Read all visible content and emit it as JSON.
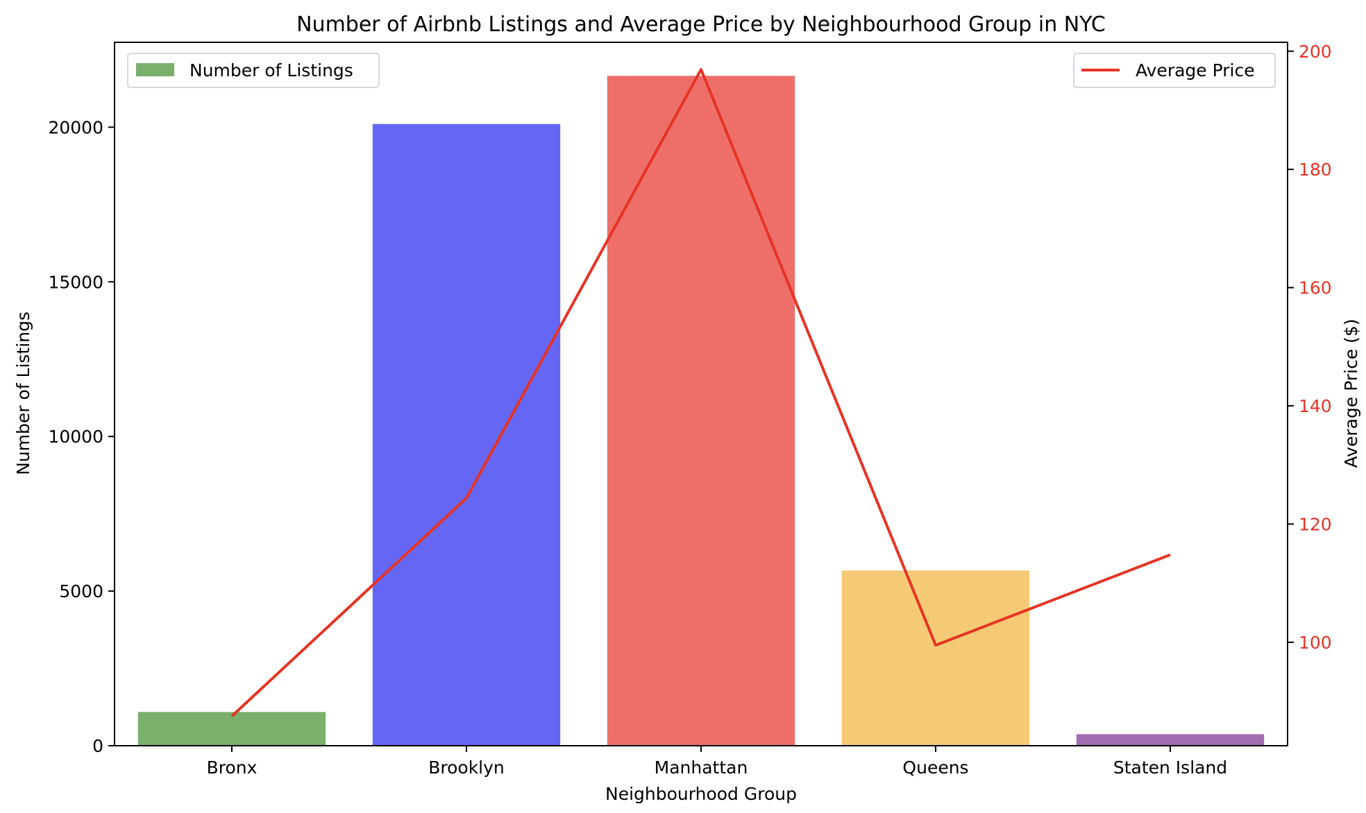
{
  "chart_data": {
    "type": "bar",
    "title": "Number of Airbnb Listings and Average Price by Neighbourhood Group in NYC",
    "xlabel": "Neighbourhood Group",
    "ylabel": "Number of Listings",
    "y2label": "Average Price ($)",
    "categories": [
      "Bronx",
      "Brooklyn",
      "Manhattan",
      "Queens",
      "Staten Island"
    ],
    "series": [
      {
        "name": "Number of Listings",
        "type": "bar",
        "axis": "left",
        "values": [
          1091,
          20104,
          21661,
          5666,
          373
        ],
        "colors": [
          "#7aaf6c",
          "#6666f5",
          "#ee6f6a",
          "#f5ca76",
          "#a46cb1"
        ]
      },
      {
        "name": "Average Price",
        "type": "line",
        "axis": "right",
        "values": [
          87.5,
          124.4,
          196.9,
          99.5,
          114.8
        ],
        "color": "#e63324"
      }
    ],
    "ylim": [
      0,
      22745
    ],
    "y2lim": [
      82.5,
      201.5
    ],
    "yticks": [
      0,
      5000,
      10000,
      15000,
      20000
    ],
    "y2ticks": [
      100,
      120,
      140,
      160,
      180,
      200
    ],
    "legend_left": "top-left",
    "legend_right": "top-right",
    "grid": false,
    "right_axis_color": "#e63324"
  }
}
